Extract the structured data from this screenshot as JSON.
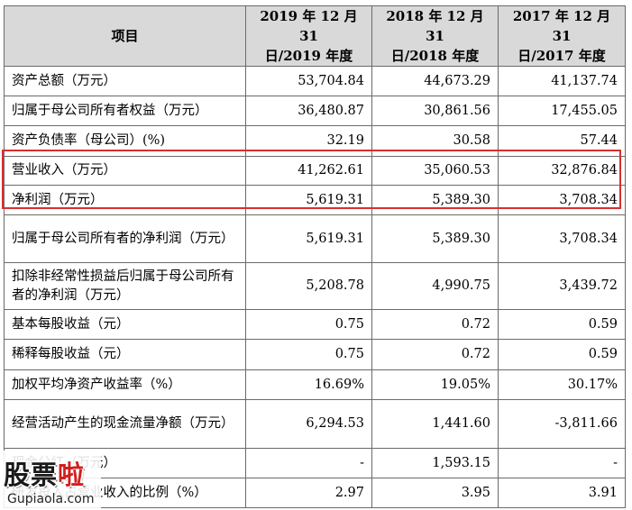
{
  "header": {
    "item": "项目",
    "col2019_line1": "2019 年 12 月 31",
    "col2019_line2": "日/2019 年度",
    "col2018_line1": "2018 年 12 月 31",
    "col2018_line2": "日/2018 年度",
    "col2017_line1": "2017 年 12 月 31",
    "col2017_line2": "日/2017 年度"
  },
  "rows": [
    {
      "label": "资产总额（万元）",
      "v2019": "53,704.84",
      "v2018": "44,673.29",
      "v2017": "41,137.74"
    },
    {
      "label": "归属于母公司所有者权益（万元）",
      "v2019": "36,480.87",
      "v2018": "30,861.56",
      "v2017": "17,455.05"
    },
    {
      "label": "资产负债率（母公司）(%)",
      "v2019": "32.19",
      "v2018": "30.58",
      "v2017": "57.44"
    },
    {
      "label": "营业收入（万元）",
      "v2019": "41,262.61",
      "v2018": "35,060.53",
      "v2017": "32,876.84"
    },
    {
      "label": "净利润（万元）",
      "v2019": "5,619.31",
      "v2018": "5,389.30",
      "v2017": "3,708.34"
    },
    {
      "label": "归属于母公司所有者的净利润（万元）",
      "v2019": "5,619.31",
      "v2018": "5,389.30",
      "v2017": "3,708.34"
    },
    {
      "label": "扣除非经常性损益后归属于母公司所有者的净利润（万元）",
      "v2019": "5,208.78",
      "v2018": "4,990.75",
      "v2017": "3,439.72"
    },
    {
      "label": "基本每股收益（元）",
      "v2019": "0.75",
      "v2018": "0.72",
      "v2017": "0.59"
    },
    {
      "label": "稀释每股收益（元）",
      "v2019": "0.75",
      "v2018": "0.72",
      "v2017": "0.59"
    },
    {
      "label": "加权平均净资产收益率（%）",
      "v2019": "16.69%",
      "v2018": "19.05%",
      "v2017": "30.17%"
    },
    {
      "label": "经营活动产生的现金流量净额（万元）",
      "v2019": "6,294.53",
      "v2018": "1,441.60",
      "v2017": "-3,811.66"
    },
    {
      "label": "现金分红（万元）",
      "v2019": "-",
      "v2018": "1,593.15",
      "v2017": "-"
    },
    {
      "label": "研发投入占营业收入的比例（%）",
      "v2019": "2.97",
      "v2018": "3.95",
      "v2017": "3.91"
    }
  ],
  "watermark": {
    "main_black": "股票",
    "main_red": "啦",
    "sub": "Gupiaola.com"
  }
}
